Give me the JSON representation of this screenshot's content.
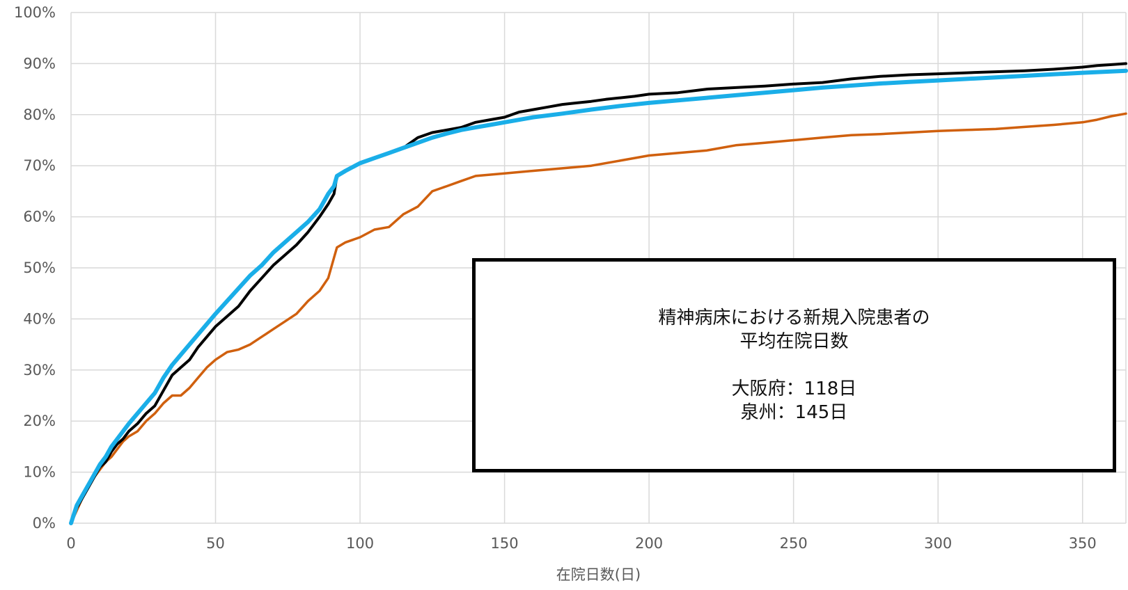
{
  "chart_data": {
    "type": "line",
    "xlabel": "在院日数(日)",
    "ylabel": "",
    "xlim": [
      0,
      365
    ],
    "ylim": [
      0,
      100
    ],
    "x_ticks": [
      0,
      50,
      100,
      150,
      200,
      250,
      300,
      350
    ],
    "y_ticks": [
      "0%",
      "10%",
      "20%",
      "30%",
      "40%",
      "50%",
      "60%",
      "70%",
      "80%",
      "90%",
      "100%"
    ],
    "grid": true,
    "legend": "none",
    "colors": {
      "black": "#000000",
      "blue": "#1AAEE8",
      "orange": "#D0600E",
      "grid": "#D9D9D9"
    },
    "series": [
      {
        "color": "#000000",
        "x": [
          0,
          2,
          4,
          6,
          8,
          10,
          12,
          14,
          16,
          18,
          20,
          23,
          26,
          29,
          32,
          35,
          38,
          41,
          44,
          47,
          50,
          54,
          58,
          62,
          66,
          70,
          74,
          78,
          82,
          86,
          89,
          91,
          92,
          95,
          100,
          105,
          110,
          115,
          120,
          125,
          130,
          135,
          140,
          145,
          150,
          155,
          160,
          165,
          170,
          175,
          180,
          185,
          190,
          195,
          200,
          210,
          220,
          230,
          240,
          250,
          260,
          270,
          280,
          290,
          300,
          310,
          320,
          330,
          340,
          350,
          355,
          360,
          365
        ],
        "y": [
          0,
          3,
          5,
          7,
          9,
          11,
          12,
          14,
          15.5,
          16.5,
          18,
          19.5,
          21.5,
          23,
          26,
          29,
          30.5,
          32,
          34.5,
          36.5,
          38.5,
          40.5,
          42.5,
          45.5,
          48,
          50.5,
          52.5,
          54.5,
          57,
          60,
          62.5,
          64.5,
          68,
          69,
          70.5,
          71.5,
          72.5,
          73.5,
          75.5,
          76.5,
          77,
          77.5,
          78.5,
          79,
          79.5,
          80.5,
          81,
          81.5,
          82,
          82.3,
          82.6,
          83,
          83.3,
          83.6,
          84,
          84.3,
          85,
          85.3,
          85.6,
          86,
          86.3,
          87,
          87.5,
          87.8,
          88,
          88.2,
          88.4,
          88.6,
          88.9,
          89.3,
          89.6,
          89.8,
          90
        ]
      },
      {
        "color": "#1AAEE8",
        "x": [
          0,
          2,
          4,
          6,
          8,
          10,
          12,
          14,
          16,
          18,
          20,
          23,
          26,
          29,
          32,
          35,
          38,
          41,
          44,
          47,
          50,
          54,
          58,
          62,
          66,
          70,
          74,
          78,
          82,
          86,
          89,
          91,
          92,
          95,
          100,
          105,
          110,
          115,
          120,
          125,
          130,
          135,
          140,
          145,
          150,
          160,
          170,
          180,
          190,
          200,
          210,
          220,
          230,
          240,
          250,
          260,
          270,
          280,
          290,
          300,
          310,
          320,
          330,
          340,
          350,
          365
        ],
        "y": [
          0,
          3.5,
          5.5,
          7.5,
          9.5,
          11.5,
          13,
          15,
          16.5,
          18,
          19.5,
          21.5,
          23.5,
          25.5,
          28.5,
          31,
          33,
          35,
          37,
          39,
          41,
          43.5,
          46,
          48.5,
          50.5,
          53,
          55,
          57,
          59,
          61.5,
          64.5,
          66,
          68,
          69,
          70.5,
          71.5,
          72.5,
          73.5,
          74.5,
          75.5,
          76.3,
          77,
          77.5,
          78,
          78.5,
          79.5,
          80.2,
          81,
          81.7,
          82.3,
          82.8,
          83.3,
          83.8,
          84.3,
          84.8,
          85.3,
          85.7,
          86.1,
          86.4,
          86.7,
          87,
          87.3,
          87.6,
          87.9,
          88.2,
          88.6
        ]
      },
      {
        "color": "#D0600E",
        "x": [
          0,
          2,
          4,
          6,
          8,
          10,
          12,
          14,
          16,
          18,
          20,
          23,
          26,
          29,
          32,
          35,
          38,
          41,
          44,
          47,
          50,
          54,
          58,
          62,
          66,
          70,
          74,
          78,
          82,
          86,
          89,
          91,
          92,
          95,
          100,
          105,
          110,
          115,
          120,
          125,
          130,
          135,
          140,
          150,
          160,
          170,
          180,
          190,
          200,
          210,
          220,
          230,
          240,
          250,
          260,
          270,
          280,
          290,
          300,
          310,
          320,
          330,
          340,
          350,
          355,
          360,
          365
        ],
        "y": [
          0,
          2.5,
          5,
          7,
          9,
          10.5,
          12,
          13,
          14.5,
          16,
          17,
          18,
          20,
          21.5,
          23.5,
          25,
          25,
          26.5,
          28.5,
          30.5,
          32,
          33.5,
          34,
          35,
          36.5,
          38,
          39.5,
          41,
          43.5,
          45.5,
          48,
          52,
          54,
          55,
          56,
          57.5,
          58,
          60.5,
          62,
          65,
          66,
          67,
          68,
          68.5,
          69,
          69.5,
          70,
          71,
          72,
          72.5,
          73,
          74,
          74.5,
          75,
          75.5,
          76,
          76.2,
          76.5,
          76.8,
          77,
          77.2,
          77.6,
          78,
          78.5,
          79,
          79.7,
          80.2
        ]
      }
    ],
    "annotation": {
      "lines": [
        "精神病床における新規入院患者の",
        "平均在院日数",
        "",
        "大阪府：118日",
        "泉州：145日"
      ]
    }
  }
}
